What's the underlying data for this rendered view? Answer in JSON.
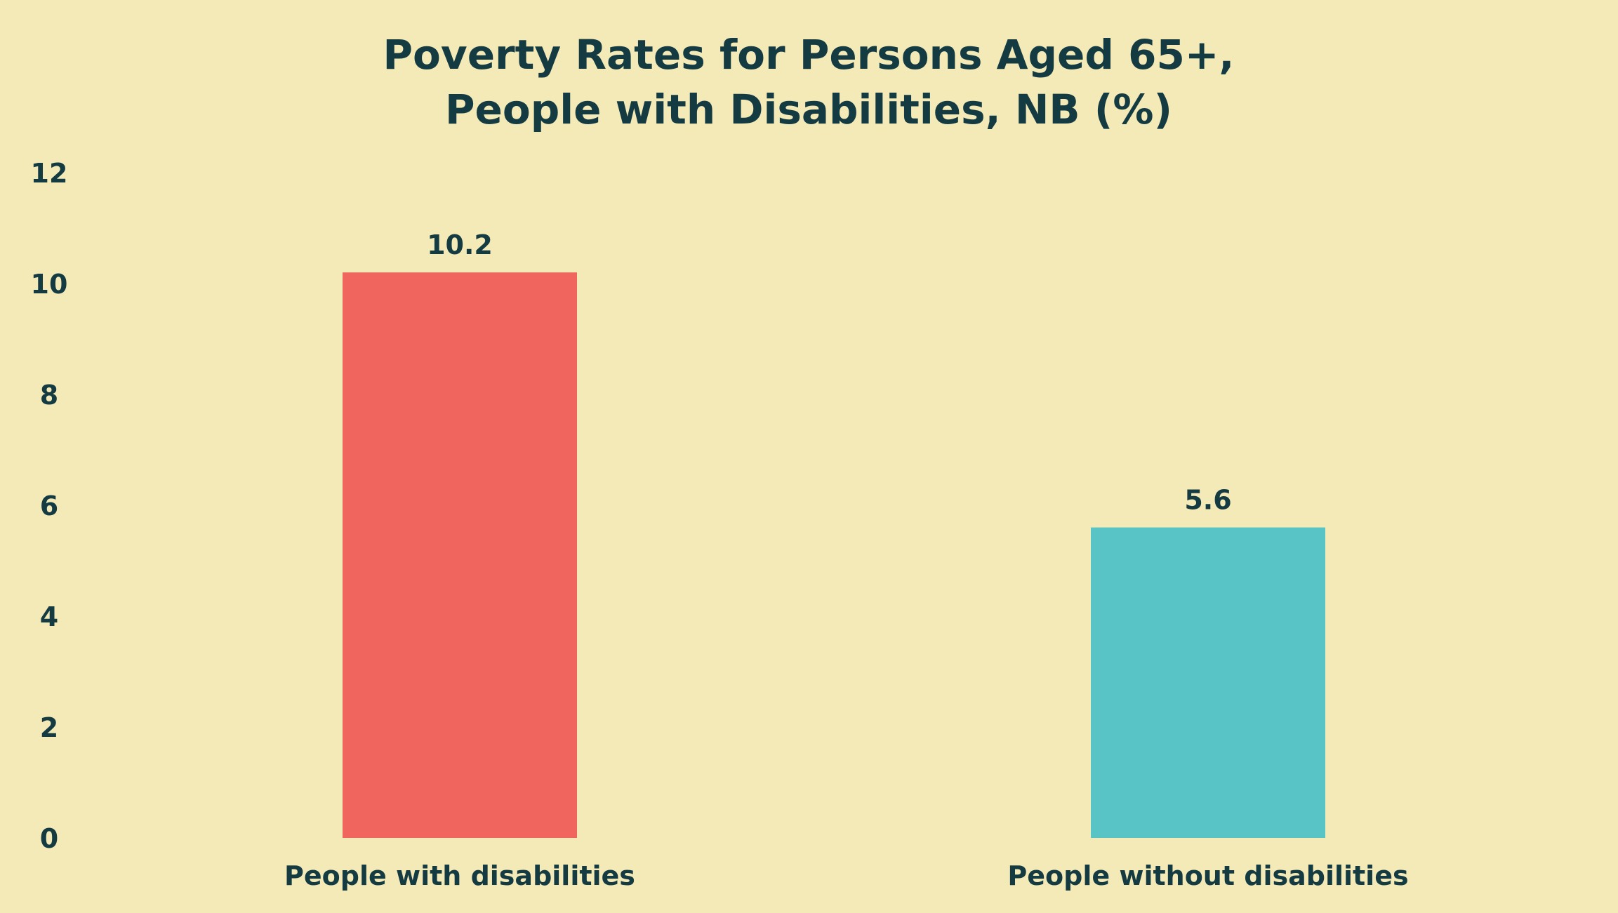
{
  "chart_data": {
    "type": "bar",
    "title": [
      "Poverty Rates for Persons Aged 65+,",
      "People with Disabilities, NB (%)"
    ],
    "xlabel": "",
    "ylabel": "",
    "categories": [
      "People with disabilities",
      "People without disabilities"
    ],
    "values": [
      10.2,
      5.6
    ],
    "value_labels": [
      "10.2",
      "5.6"
    ],
    "bar_colors": [
      "#F0655E",
      "#58C4C6"
    ],
    "ylim": [
      0,
      12
    ],
    "yticks": [
      0,
      2,
      4,
      6,
      8,
      10,
      12
    ],
    "grid": false,
    "legend": "none"
  },
  "colors": {
    "background": "#F4EAB8",
    "text": "#153B42"
  }
}
